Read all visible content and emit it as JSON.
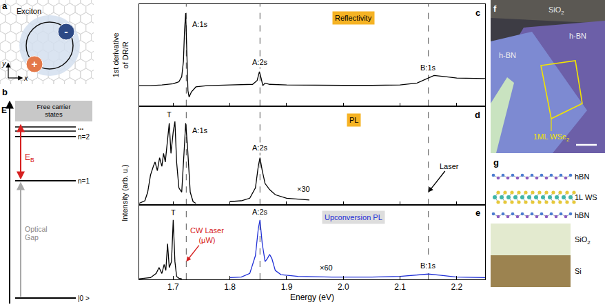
{
  "panels": {
    "a": {
      "letter": "a",
      "label": "Exciton",
      "charges": [
        "-",
        "+"
      ],
      "axes": [
        "x",
        "y"
      ]
    },
    "b": {
      "letter": "b",
      "axis": "E",
      "band": "Free carrier states",
      "ellipsis": "...",
      "levels": [
        "n=2",
        "n=1",
        "|0 >"
      ],
      "gap_label": "Optical Gap",
      "binding_energy": {
        "text": "E",
        "subscript": "B"
      }
    },
    "f": {
      "letter": "f",
      "labels": [
        {
          "text": "SiO",
          "subscript": "2"
        },
        {
          "text": "h-BN"
        },
        {
          "text": "h-BN"
        },
        {
          "text": "1ML WSe",
          "subscript": "2"
        }
      ]
    },
    "g": {
      "letter": "g",
      "layers": [
        {
          "text": "hBN"
        },
        {
          "text": "1L WS"
        },
        {
          "text": "hBN"
        },
        {
          "text": "SiO",
          "subscript": "2"
        },
        {
          "text": "Si"
        }
      ]
    }
  },
  "chart_data": [
    {
      "type": "line",
      "letter": "c",
      "box_label": "Reflectivity",
      "ylabel": "1st derivative of DR/R",
      "xlim": [
        1.64,
        2.25
      ],
      "xticks": [
        1.7,
        1.8,
        1.9,
        {
          "value": 2,
          "label": "2.0"
        },
        2.1,
        2.2
      ],
      "ylim": [
        -1.5,
        6.5
      ],
      "tick_labels": false,
      "grid": false,
      "vlines": [
        1.723,
        1.853,
        2.15
      ],
      "series": [
        {
          "color": "#000000",
          "x": [
            1.64,
            1.66,
            1.68,
            1.7,
            1.71,
            1.715,
            1.718,
            1.72,
            1.722,
            1.724,
            1.726,
            1.728,
            1.732,
            1.74,
            1.76,
            1.8,
            1.84,
            1.848,
            1.852,
            1.855,
            1.858,
            1.862,
            1.87,
            1.9,
            1.95,
            2.0,
            2.05,
            2.1,
            2.13,
            2.15,
            2.16,
            2.18,
            2.2,
            2.25
          ],
          "values": [
            0.1,
            0.1,
            0.15,
            0.25,
            0.4,
            0.8,
            2,
            4.5,
            5.8,
            3,
            -0.3,
            -0.8,
            -0.4,
            0,
            0.1,
            0.15,
            0.2,
            0.5,
            1.2,
            0.7,
            0.1,
            0.3,
            0.2,
            0.15,
            0.12,
            0.12,
            0.12,
            0.15,
            0.3,
            0.7,
            0.9,
            0.8,
            0.7,
            0.65
          ]
        }
      ],
      "annotations": [
        {
          "text": "A:1s",
          "x": 1.748,
          "y": 4.5
        },
        {
          "text": "A:2s",
          "x": 1.853,
          "y": 1.5
        },
        {
          "text": "B:1s",
          "x": 2.15,
          "y": 1.1
        }
      ]
    },
    {
      "type": "line",
      "letter": "d",
      "box_label": "PL",
      "ylabel": "Intensity (arb. u.)",
      "xlim": [
        1.64,
        2.25
      ],
      "xticks": [
        1.7,
        1.8,
        1.9,
        {
          "value": 2,
          "label": "2.0"
        },
        2.1,
        2.2
      ],
      "ylim": [
        0,
        1.15
      ],
      "tick_labels": false,
      "grid": false,
      "vlines": [
        1.723,
        1.853,
        2.15
      ],
      "series": [
        {
          "color": "#000000",
          "x": [
            1.64,
            1.65,
            1.655,
            1.66,
            1.665,
            1.668,
            1.672,
            1.676,
            1.68,
            1.683,
            1.686,
            1.69,
            1.693,
            1.696,
            1.7,
            1.703,
            1.706,
            1.71,
            1.715,
            1.719,
            1.722,
            1.725,
            1.73,
            1.735,
            1.74
          ],
          "values": [
            0.02,
            0.05,
            0.15,
            0.35,
            0.45,
            0.5,
            0.4,
            0.55,
            0.45,
            0.6,
            0.5,
            0.75,
            0.95,
            0.6,
            0.85,
            0.97,
            0.5,
            0.2,
            0.15,
            0.6,
            0.95,
            0.7,
            0.15,
            0.04,
            0.02
          ]
        },
        {
          "color": "#000000",
          "x": [
            1.8,
            1.82,
            1.835,
            1.845,
            1.85,
            1.853,
            1.857,
            1.862,
            1.87,
            1.88,
            1.9,
            1.92,
            1.94
          ],
          "values": [
            0.04,
            0.05,
            0.08,
            0.2,
            0.45,
            0.55,
            0.4,
            0.25,
            0.18,
            0.12,
            0.08,
            0.07,
            0.06
          ]
        }
      ],
      "annotations": [
        {
          "text": "T",
          "x": 1.693,
          "y": 0.99
        },
        {
          "text": "A:1s",
          "x": 1.748,
          "y": 0.8
        },
        {
          "text": "A:2s",
          "x": 1.853,
          "y": 0.6
        },
        {
          "text": "×30",
          "x": 1.93,
          "y": 0.12
        },
        {
          "text": "Laser",
          "x": 2.15,
          "y": 0.15,
          "arrow": true
        }
      ]
    },
    {
      "type": "line",
      "letter": "e",
      "box_label": "Upconversion PL",
      "xlabel": "Energy (eV)",
      "xlim": [
        1.64,
        2.25
      ],
      "xticks": [
        1.7,
        1.8,
        1.9,
        {
          "value": 2,
          "label": "2.0"
        },
        2.1,
        2.2
      ],
      "ylim": [
        0,
        1.25
      ],
      "tick_labels": "x",
      "grid": false,
      "vlines": [
        1.723,
        1.853,
        2.15
      ],
      "series": [
        {
          "color": "#000000",
          "x": [
            1.64,
            1.66,
            1.67,
            1.675,
            1.68,
            1.684,
            1.687,
            1.69,
            1.693,
            1.697,
            1.7,
            1.703,
            1.706,
            1.71,
            1.715
          ],
          "values": [
            0.01,
            0.03,
            0.1,
            0.2,
            0.1,
            0.25,
            0.15,
            0.6,
            0.2,
            0.3,
            1.0,
            0.3,
            0.05,
            0.02,
            0.01
          ]
        },
        {
          "color": "#1f2fd6",
          "x": [
            1.8,
            1.82,
            1.835,
            1.845,
            1.85,
            1.853,
            1.857,
            1.862,
            1.866,
            1.87,
            1.874,
            1.88,
            1.89,
            1.92,
            1.98,
            2.05,
            2.1,
            2.13,
            2.15,
            2.17,
            2.2,
            2.25
          ],
          "values": [
            0.03,
            0.04,
            0.1,
            0.4,
            0.85,
            1.0,
            0.6,
            0.3,
            0.35,
            0.42,
            0.35,
            0.15,
            0.08,
            0.05,
            0.04,
            0.04,
            0.05,
            0.07,
            0.09,
            0.07,
            0.04,
            0.03
          ]
        }
      ],
      "annotations": [
        {
          "text": "T",
          "x": 1.7,
          "y": 1.03
        },
        {
          "text": [
            "CW Laser",
            "(μW)"
          ],
          "x": 1.723,
          "y": 0.3,
          "arrow": true,
          "color": "#d62020"
        },
        {
          "text": "A:2s",
          "x": 1.853,
          "y": 1.04
        },
        {
          "text": "×60",
          "x": 1.97,
          "y": 0.1
        },
        {
          "text": "B:1s",
          "x": 2.15,
          "y": 0.14
        }
      ]
    }
  ]
}
